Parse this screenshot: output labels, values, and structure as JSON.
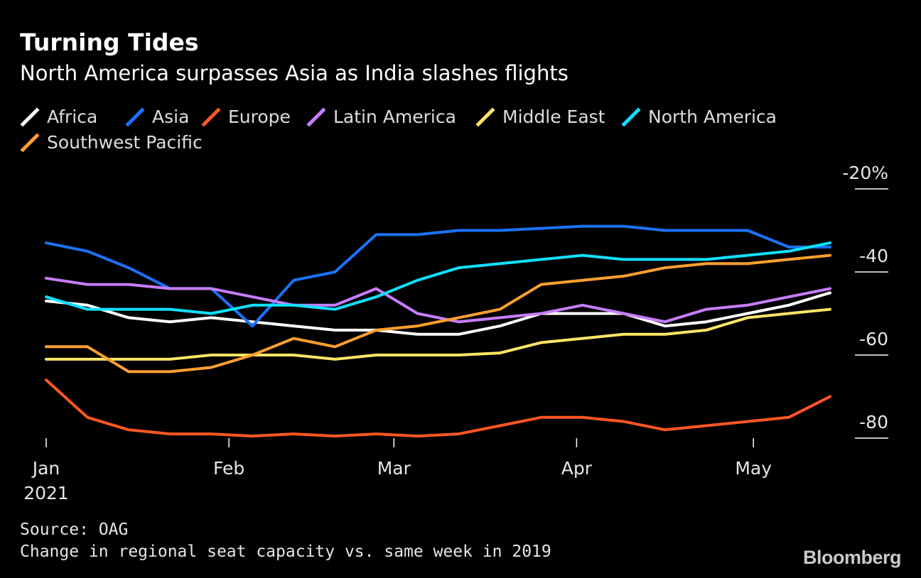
{
  "title": "Turning Tides",
  "subtitle": "North America surpasses Asia as India slashes flights",
  "source": "Source: OAG",
  "note": "Change in regional seat capacity vs. same week in 2019",
  "brand": "Bloomberg",
  "chart_data": {
    "type": "line",
    "title": "Turning Tides",
    "subtitle": "North America surpasses Asia as India slashes flights",
    "xlabel": "",
    "ylabel": "",
    "ylim": [
      -86,
      -16
    ],
    "y_axis_side": "right",
    "y_ticks": [
      {
        "value": -20,
        "label": "-20%"
      },
      {
        "value": -40,
        "label": "-40"
      },
      {
        "value": -60,
        "label": "-60"
      },
      {
        "value": -80,
        "label": "-80"
      }
    ],
    "x_range": [
      "2021-01-01",
      "2021-05-24"
    ],
    "x_ticks": [
      {
        "date": "2021-01-01",
        "label": "Jan",
        "sublabel": "2021"
      },
      {
        "date": "2021-02-01",
        "label": "Feb"
      },
      {
        "date": "2021-03-01",
        "label": "Mar"
      },
      {
        "date": "2021-04-01",
        "label": "Apr"
      },
      {
        "date": "2021-05-01",
        "label": "May"
      }
    ],
    "x": [
      "2021-01-01",
      "2021-01-08",
      "2021-01-15",
      "2021-01-22",
      "2021-01-29",
      "2021-02-05",
      "2021-02-12",
      "2021-02-19",
      "2021-02-26",
      "2021-03-05",
      "2021-03-12",
      "2021-03-19",
      "2021-03-26",
      "2021-04-02",
      "2021-04-09",
      "2021-04-16",
      "2021-04-23",
      "2021-04-30",
      "2021-05-07",
      "2021-05-14"
    ],
    "grid": false,
    "legend_position": "top",
    "series": [
      {
        "name": "Africa",
        "color": "#ffffff",
        "values": [
          -47,
          -48,
          -51,
          -52,
          -51,
          -52,
          -53,
          -54,
          -54,
          -55,
          -55,
          -53,
          -50,
          -50,
          -50,
          -53,
          -52,
          -50,
          -48,
          -45
        ]
      },
      {
        "name": "Asia",
        "color": "#1a73ff",
        "values": [
          -33,
          -35,
          -39,
          -44,
          -44,
          -53,
          -42,
          -40,
          -31,
          -31,
          -30,
          -30,
          -29.5,
          -29,
          -29,
          -30,
          -30,
          -30,
          -34,
          -34
        ]
      },
      {
        "name": "Europe",
        "color": "#ff5722",
        "values": [
          -66,
          -75,
          -78,
          -79,
          -79,
          -79.5,
          -79,
          -79.5,
          -79,
          -79.5,
          -79,
          -77,
          -75,
          -75,
          -76,
          -78,
          -77,
          -76,
          -75,
          -70
        ]
      },
      {
        "name": "Latin America",
        "color": "#c77dff",
        "values": [
          -41.5,
          -43,
          -43,
          -44,
          -44,
          -46,
          -48,
          -48,
          -44,
          -50,
          -52,
          -51,
          -50,
          -48,
          -50,
          -52,
          -49,
          -48,
          -46,
          -44
        ]
      },
      {
        "name": "Middle East",
        "color": "#ffe566",
        "values": [
          -61,
          -61,
          -61,
          -61,
          -60,
          -60,
          -60,
          -61,
          -60,
          -60,
          -60,
          -59.5,
          -57,
          -56,
          -55,
          -55,
          -54,
          -51,
          -50,
          -49
        ]
      },
      {
        "name": "North America",
        "color": "#0fe0ff",
        "values": [
          -46,
          -49,
          -49,
          -49,
          -50,
          -48,
          -48,
          -49,
          -46,
          -42,
          -39,
          -38,
          -37,
          -36,
          -37,
          -37,
          -37,
          -36,
          -35,
          -33
        ]
      },
      {
        "name": "Southwest Pacific",
        "color": "#ff9f2e",
        "values": [
          -58,
          -58,
          -64,
          -64,
          -63,
          -60,
          -56,
          -58,
          -54,
          -53,
          -51,
          -49,
          -43,
          -42,
          -41,
          -39,
          -38,
          -38,
          -37,
          -36
        ]
      }
    ]
  }
}
